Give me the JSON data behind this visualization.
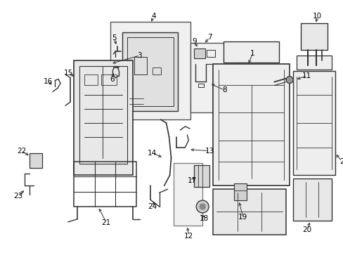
{
  "background_color": "#ffffff",
  "line_color": "#333333",
  "light_fill": "#e8e8e8",
  "fig_width": 4.89,
  "fig_height": 3.6,
  "dpi": 100
}
